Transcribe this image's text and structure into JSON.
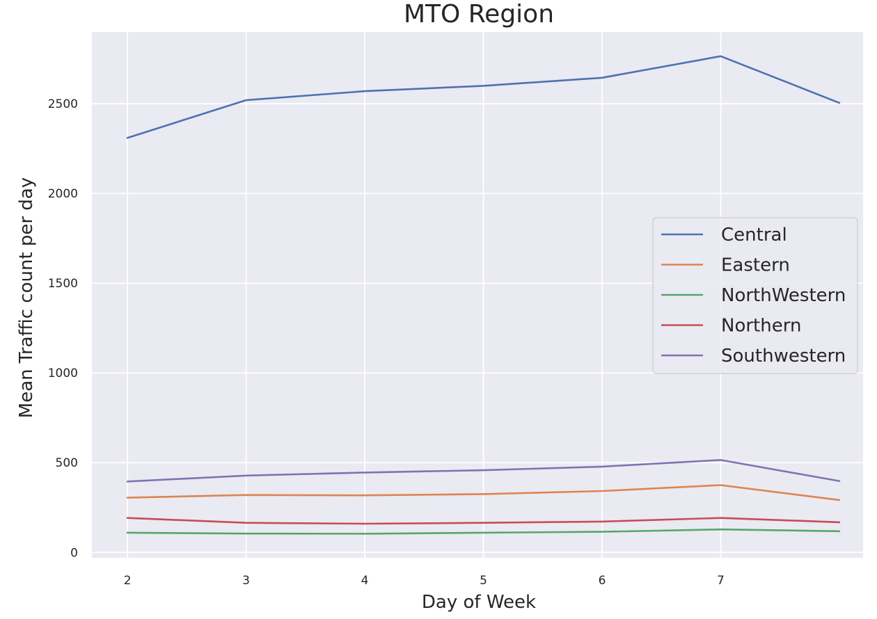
{
  "chart_data": {
    "type": "line",
    "title": "MTO Region",
    "xlabel": "Day of Week",
    "ylabel": "Mean Traffic count per day",
    "x": [
      2,
      3,
      4,
      5,
      6,
      7,
      8
    ],
    "xticks": [
      "2",
      "3",
      "4",
      "5",
      "6",
      "7"
    ],
    "yticks": [
      "0",
      "500",
      "1000",
      "1500",
      "2000",
      "2500"
    ],
    "xlim": [
      1.7,
      8.2
    ],
    "ylim": [
      -30,
      2900
    ],
    "grid": true,
    "legend_position": "center-right",
    "series": [
      {
        "name": "Central",
        "color": "#4c72b0",
        "values": [
          2310,
          2520,
          2570,
          2600,
          2645,
          2765,
          2505
        ]
      },
      {
        "name": "Eastern",
        "color": "#dd8452",
        "values": [
          305,
          320,
          318,
          325,
          342,
          375,
          292
        ]
      },
      {
        "name": "NorthWestern",
        "color": "#55a868",
        "values": [
          110,
          105,
          104,
          110,
          115,
          128,
          118
        ]
      },
      {
        "name": "Northern",
        "color": "#c44e52",
        "values": [
          192,
          165,
          160,
          165,
          172,
          192,
          168
        ]
      },
      {
        "name": "Southwestern",
        "color": "#8172b3",
        "values": [
          395,
          428,
          445,
          458,
          478,
          515,
          398
        ]
      }
    ]
  }
}
